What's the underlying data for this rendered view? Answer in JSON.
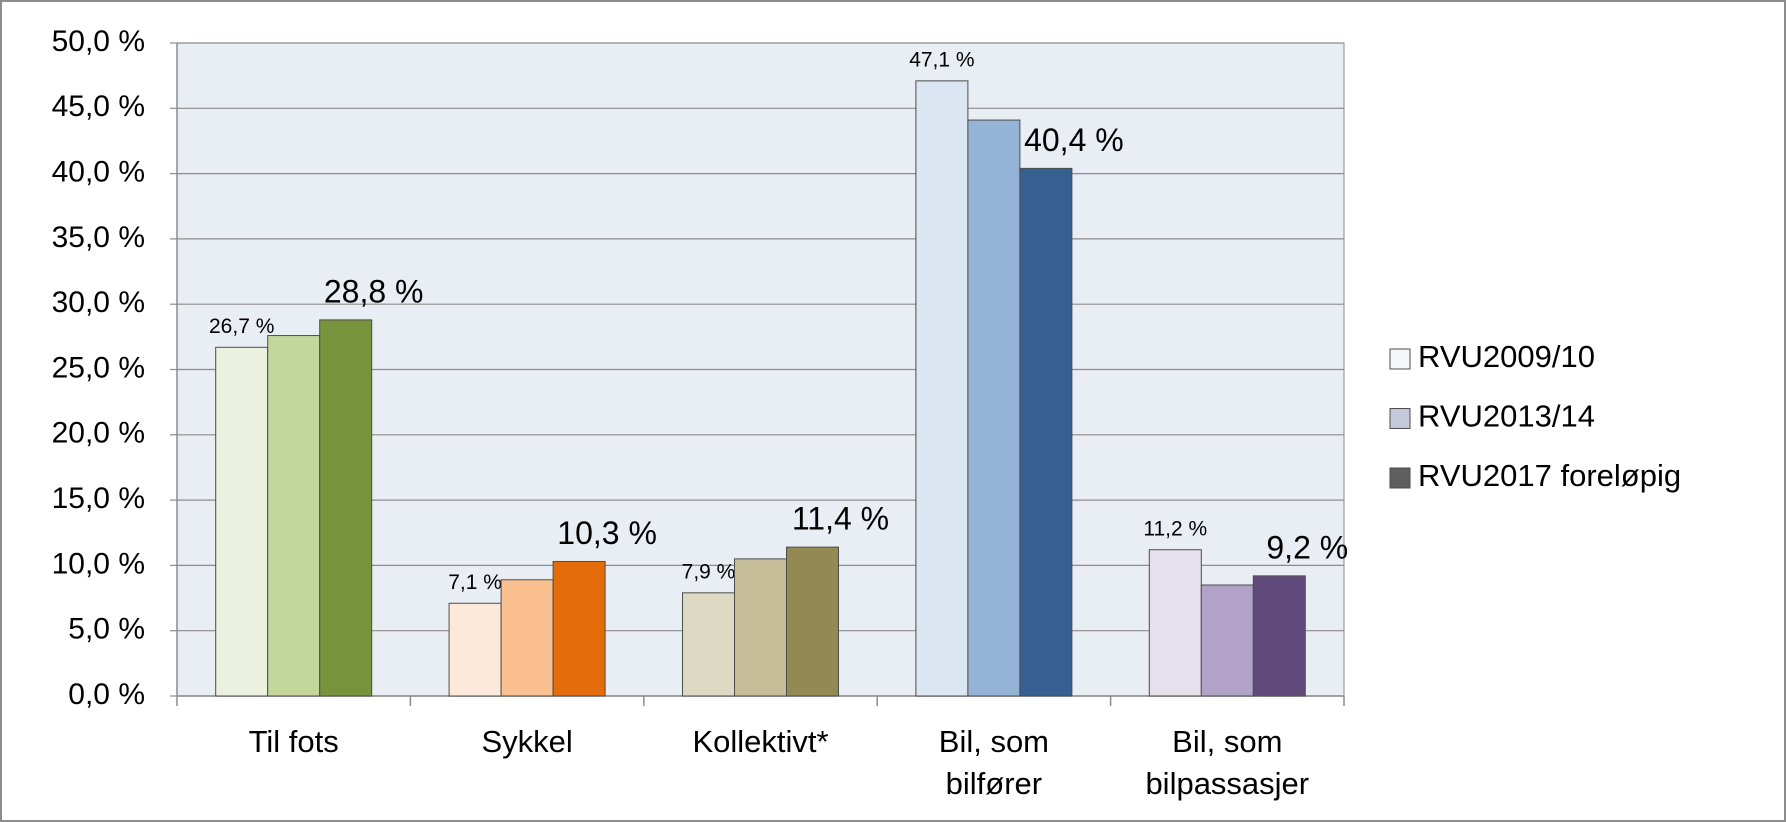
{
  "chart_data": {
    "type": "bar",
    "categories": [
      "Til fots",
      "Sykkel",
      "Kollektivt*",
      "Bil, som\nbilfører",
      "Bil, som\nbilpassasjer"
    ],
    "series": [
      {
        "name": "RVU2009/10",
        "color": "#f4f6fa",
        "colors": [
          "#ebf1de",
          "#fde9d9",
          "#ddd9c3",
          "#dce6f2",
          "#e6e0ec"
        ],
        "values": [
          26.7,
          7.1,
          7.9,
          47.1,
          11.2
        ],
        "value_labels": [
          "26,7 %",
          "7,1 %",
          "7,9 %",
          "47,1 %",
          "11,2 %"
        ]
      },
      {
        "name": "RVU2013/14",
        "color": "#c3c8da",
        "colors": [
          "#c3d69b",
          "#fac090",
          "#c4bd97",
          "#95b3d7",
          "#b3a2c7"
        ],
        "values": [
          27.6,
          8.9,
          10.5,
          44.1,
          8.5
        ]
      },
      {
        "name": "RVU2017 foreløpig",
        "color": "#5f5f5f",
        "colors": [
          "#77933c",
          "#e46c0a",
          "#938953",
          "#376092",
          "#604a7b"
        ],
        "values": [
          28.8,
          10.3,
          11.4,
          40.4,
          9.2
        ],
        "value_labels": [
          "28,8 %",
          "10,3 %",
          "11,4 %",
          "40,4 %",
          "9,2 %"
        ]
      }
    ],
    "ylim": [
      0,
      50
    ],
    "yticks": [
      {
        "value": 0,
        "label": "0,0 %"
      },
      {
        "value": 5,
        "label": "5,0 %"
      },
      {
        "value": 10,
        "label": "10,0 %"
      },
      {
        "value": 15,
        "label": "15,0 %"
      },
      {
        "value": 20,
        "label": "20,0 %"
      },
      {
        "value": 25,
        "label": "25,0 %"
      },
      {
        "value": 30,
        "label": "30,0 %"
      },
      {
        "value": 35,
        "label": "35,0 %"
      },
      {
        "value": 40,
        "label": "40,0 %"
      },
      {
        "value": 45,
        "label": "45,0 %"
      },
      {
        "value": 50,
        "label": "50,0 %"
      }
    ],
    "grid": true,
    "legend": "right"
  }
}
